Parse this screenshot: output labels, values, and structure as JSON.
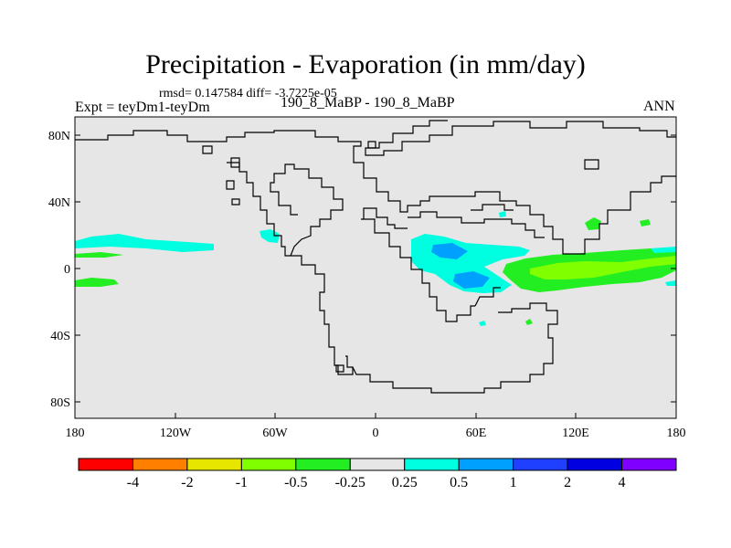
{
  "title": "Precipitation - Evaporation (in mm/day)",
  "stats": "rmsd= 0.147584 diff= -3.7225e-05",
  "expt": "Expt = teyDm1-teyDm",
  "cases": "190_8_MaBP - 190_8_MaBP",
  "season": "ANN",
  "lat_labels": [
    "80N",
    "40N",
    "0",
    "40S",
    "80S"
  ],
  "lon_labels": [
    "180",
    "120W",
    "60W",
    "0",
    "60E",
    "120E",
    "180"
  ],
  "colorbar": {
    "colors": [
      "#ff0000",
      "#ff8000",
      "#e6e600",
      "#80ff00",
      "#22ee22",
      "#e6e6e6",
      "#00ffe0",
      "#00a0ff",
      "#2040ff",
      "#0000e0",
      "#8000ff"
    ],
    "labels": [
      "-4",
      "-2",
      "-1",
      "-0.5",
      "-0.25",
      "0.25",
      "0.5",
      "1",
      "2",
      "4"
    ]
  },
  "background_color": "#e6e6e6"
}
